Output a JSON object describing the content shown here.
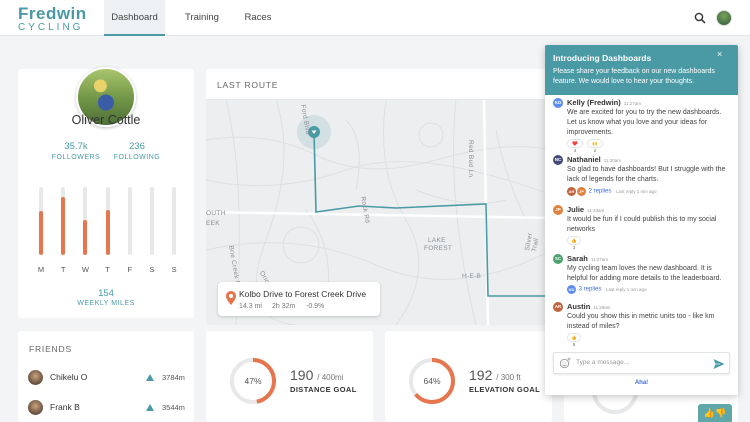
{
  "brand": {
    "name": "Fredwin",
    "sub": "CYCLING"
  },
  "nav": [
    {
      "label": "Dashboard",
      "active": true
    },
    {
      "label": "Training",
      "active": false
    },
    {
      "label": "Races",
      "active": false
    }
  ],
  "profile": {
    "name": "Oliver Cottle",
    "followers_count": "35.7k",
    "followers_label": "FOLLOWERS",
    "following_count": "236",
    "following_label": "FOLLOWING",
    "weekly_miles_value": "154",
    "weekly_miles_label": "WEEKLY MILES",
    "days": [
      {
        "label": "M",
        "fraction": 0.64
      },
      {
        "label": "T",
        "fraction": 0.86
      },
      {
        "label": "W",
        "fraction": 0.52
      },
      {
        "label": "T",
        "fraction": 0.66
      },
      {
        "label": "F",
        "fraction": 0
      },
      {
        "label": "S",
        "fraction": 0
      },
      {
        "label": "S",
        "fraction": 0
      }
    ]
  },
  "map": {
    "title": "LAST ROUTE",
    "labels": [
      "Red Bud Ln",
      "Ford Blvd",
      "Rock Rd",
      "LAKE",
      "FOREST",
      "H-E-B",
      "Silver Trail",
      "OUTH",
      "EEK",
      "Brie Creek Dr",
      "Orion Dr"
    ],
    "route_name": "Kolbo Drive to Forest Creek Drive",
    "distance": "14.3 mi",
    "duration": "2h 32m",
    "grade": "-0.9%"
  },
  "friends": {
    "title": "FRIENDS",
    "items": [
      {
        "name": "Chikelu O",
        "distance": "3784m"
      },
      {
        "name": "Frank B",
        "distance": "3544m"
      }
    ]
  },
  "goals": [
    {
      "percent_label": "47%",
      "progress": 0.47,
      "value": "190",
      "target": "/ 400mi",
      "label": "DISTANCE GOAL"
    },
    {
      "percent_label": "64%",
      "progress": 0.64,
      "value": "192",
      "target": "/ 300 ft",
      "label": "ELEVATION GOAL"
    }
  ],
  "panel": {
    "title": "Introducing Dashboards",
    "close": "×",
    "description": "Please share your feedback on our new dashboards feature. We would love to hear your thoughts.",
    "messages": [
      {
        "initials": "KD",
        "color": "#5b8def",
        "name": "Kelly (Fredwin)",
        "time": "11:27am",
        "text": "We are excited for you to try the new dashboards. Let us know what you love and your ideas for improvements.",
        "reactions": [
          "❤️ 4",
          "🙌 2"
        ]
      },
      {
        "initials": "NC",
        "color": "#444b7a",
        "name": "Nathaniel",
        "time": "11:30am",
        "text": "So glad to have dashboards! But I struggle with the lack of legends for the charts.",
        "reply_avatars": [
          {
            "i": "AR",
            "c": "#c0623c"
          },
          {
            "i": "JP",
            "c": "#e0813e"
          }
        ],
        "replies": "2 replies",
        "last_reply": "Last reply 1 min ago"
      },
      {
        "initials": "JP",
        "color": "#e0813e",
        "name": "Julie",
        "time": "11:33am",
        "text": "It would be fun if I could publish this to my social networks",
        "reactions": [
          "👍 3"
        ]
      },
      {
        "initials": "SC",
        "color": "#4aa36b",
        "name": "Sarah",
        "time": "11:27am",
        "text": "My cycling team loves the new dashboard. It is helpful for adding more details to the leaderboard.",
        "reply_avatars": [
          {
            "i": "KD",
            "c": "#5b8def"
          }
        ],
        "replies": "3 replies",
        "last_reply": "Last reply 1 min ago"
      },
      {
        "initials": "AR",
        "color": "#c0623c",
        "name": "Austin",
        "time": "11:29am",
        "text": "Could you show this in metric units too - like km instead of miles?",
        "reactions": [
          "👍 5"
        ]
      }
    ],
    "input_placeholder": "Type a message...",
    "powered": "Aha!"
  },
  "fab_label": "👍👎"
}
